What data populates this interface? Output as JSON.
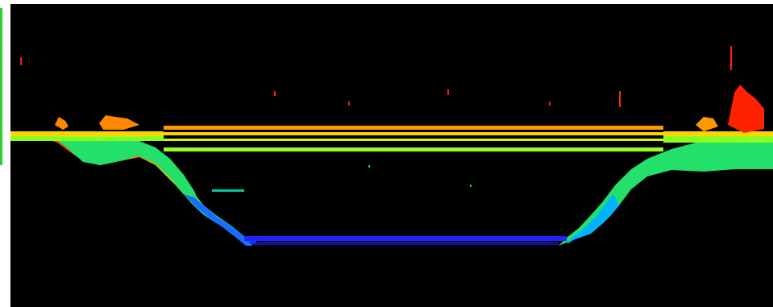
{
  "view": {
    "background_color": "#000000",
    "frame_accent_color": "#2bd22b",
    "elevation_colormap": [
      "#1515ff",
      "#00aaff",
      "#00e6b4",
      "#33ff33",
      "#aaff00",
      "#ffd400",
      "#ff9900",
      "#ff4400",
      "#ff0000"
    ]
  }
}
